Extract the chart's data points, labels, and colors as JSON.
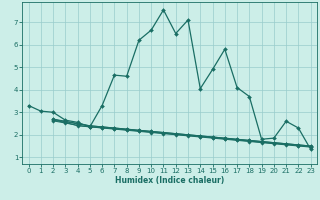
{
  "xlabel": "Humidex (Indice chaleur)",
  "bg_color": "#cceee8",
  "grid_color": "#99cccc",
  "line_color": "#1a6e64",
  "xlim": [
    -0.5,
    23.5
  ],
  "ylim": [
    0.7,
    7.9
  ],
  "xticks": [
    0,
    1,
    2,
    3,
    4,
    5,
    6,
    7,
    8,
    9,
    10,
    11,
    12,
    13,
    14,
    15,
    16,
    17,
    18,
    19,
    20,
    21,
    22,
    23
  ],
  "yticks": [
    1,
    2,
    3,
    4,
    5,
    6,
    7
  ],
  "lines": [
    {
      "x": [
        0,
        1,
        2,
        3,
        4,
        5,
        6,
        7,
        8,
        9,
        10,
        11,
        12,
        13,
        14,
        15,
        16,
        17,
        18,
        19,
        20,
        21,
        22,
        23
      ],
      "y": [
        3.3,
        3.05,
        3.0,
        2.65,
        2.55,
        2.35,
        3.3,
        4.65,
        4.6,
        6.2,
        6.65,
        7.55,
        6.5,
        7.1,
        4.05,
        4.9,
        5.8,
        4.1,
        3.7,
        1.8,
        1.85,
        2.6,
        2.3,
        1.35
      ]
    },
    {
      "x": [
        2,
        3,
        4,
        5,
        6,
        7,
        8,
        9,
        10,
        11,
        12,
        13,
        14,
        15,
        16,
        17,
        18,
        19,
        20,
        21,
        22,
        23
      ],
      "y": [
        2.65,
        2.55,
        2.4,
        2.35,
        2.3,
        2.25,
        2.2,
        2.15,
        2.1,
        2.05,
        2.0,
        1.95,
        1.9,
        1.85,
        1.8,
        1.75,
        1.7,
        1.65,
        1.6,
        1.55,
        1.5,
        1.45
      ]
    },
    {
      "x": [
        2,
        3,
        4,
        5,
        6,
        7,
        8,
        9,
        10,
        11,
        12,
        13,
        14,
        15,
        16,
        17,
        18,
        19,
        20,
        21,
        22,
        23
      ],
      "y": [
        2.7,
        2.6,
        2.5,
        2.4,
        2.35,
        2.3,
        2.25,
        2.2,
        2.15,
        2.1,
        2.05,
        2.0,
        1.95,
        1.9,
        1.85,
        1.8,
        1.75,
        1.7,
        1.65,
        1.6,
        1.55,
        1.5
      ]
    },
    {
      "x": [
        2,
        3,
        4,
        5,
        6,
        7,
        8,
        9,
        10,
        11,
        12,
        13,
        14,
        15,
        16,
        17,
        18,
        19,
        20,
        21,
        22,
        23
      ],
      "y": [
        2.68,
        2.58,
        2.48,
        2.4,
        2.35,
        2.3,
        2.25,
        2.2,
        2.15,
        2.1,
        2.05,
        2.0,
        1.95,
        1.9,
        1.85,
        1.8,
        1.75,
        1.7,
        1.65,
        1.6,
        1.55,
        1.5
      ]
    },
    {
      "x": [
        2,
        3,
        4,
        5,
        6,
        7,
        8,
        9,
        10,
        11,
        12,
        13,
        14,
        15,
        16,
        17,
        18,
        19,
        20,
        21,
        22,
        23
      ],
      "y": [
        2.62,
        2.52,
        2.42,
        2.35,
        2.31,
        2.27,
        2.22,
        2.17,
        2.12,
        2.07,
        2.02,
        1.97,
        1.92,
        1.87,
        1.82,
        1.77,
        1.72,
        1.67,
        1.62,
        1.57,
        1.52,
        1.47
      ]
    }
  ]
}
